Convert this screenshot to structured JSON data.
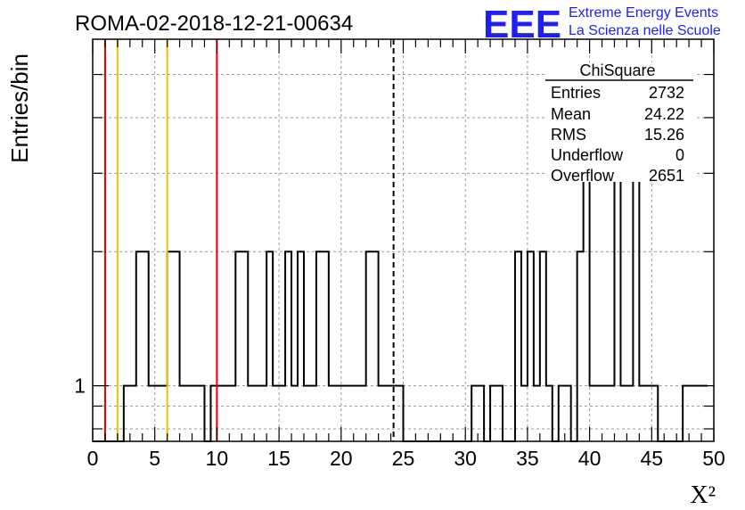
{
  "header": {
    "run_title": "ROMA-02-2018-12-21-00634",
    "logo_text": "EEE",
    "logo_line1": "Extreme Energy Events",
    "logo_line2": "La Scienza nelle Scuole"
  },
  "stats": {
    "title": "ChiSquare",
    "rows": [
      {
        "label": "Entries",
        "value": "2732"
      },
      {
        "label": "Mean",
        "value": "24.22"
      },
      {
        "label": "RMS",
        "value": "15.26"
      },
      {
        "label": "Underflow",
        "value": "0"
      },
      {
        "label": "Overflow",
        "value": "2651"
      }
    ]
  },
  "chart_data": {
    "type": "bar",
    "title": "ROMA-02-2018-12-21-00634",
    "xlabel": "X²",
    "ylabel": "Entries/bin",
    "xlim": [
      0,
      50
    ],
    "log_y": true,
    "ylim": [
      0.75,
      6
    ],
    "bin_width": 0.5,
    "grid": true,
    "x_ticks": [
      "0",
      "5",
      "10",
      "15",
      "20",
      "25",
      "30",
      "35",
      "40",
      "45",
      "50"
    ],
    "y_tick_labels": [
      "1"
    ],
    "counts": [
      0,
      0,
      0,
      0,
      0,
      1,
      1,
      2,
      2,
      1,
      1,
      1,
      2,
      2,
      1,
      1,
      1,
      1,
      0,
      1,
      1,
      1,
      1,
      2,
      2,
      1,
      1,
      1,
      2,
      1,
      1,
      2,
      1,
      2,
      1,
      1,
      2,
      2,
      1,
      1,
      1,
      1,
      1,
      1,
      2,
      2,
      1,
      1,
      1,
      1,
      0,
      0,
      0,
      0,
      0,
      0,
      0,
      0,
      0,
      0,
      0,
      1,
      1,
      0,
      1,
      1,
      0,
      0,
      2,
      1,
      2,
      1,
      2,
      1,
      0,
      1,
      1,
      0,
      2,
      3,
      1,
      1,
      1,
      1,
      3,
      1,
      1,
      3,
      1,
      1,
      1,
      0,
      0,
      0,
      0,
      1,
      1,
      1,
      1
    ],
    "vertical_lines": [
      {
        "x": 1.0,
        "color": "#e00000",
        "style": "solid"
      },
      {
        "x": 2.0,
        "color": "#f0c000",
        "style": "solid"
      },
      {
        "x": 6.0,
        "color": "#f0c000",
        "style": "solid"
      },
      {
        "x": 10.0,
        "color": "#e00000",
        "style": "solid"
      },
      {
        "x": 24.22,
        "color": "#000000",
        "style": "dashed"
      }
    ]
  }
}
